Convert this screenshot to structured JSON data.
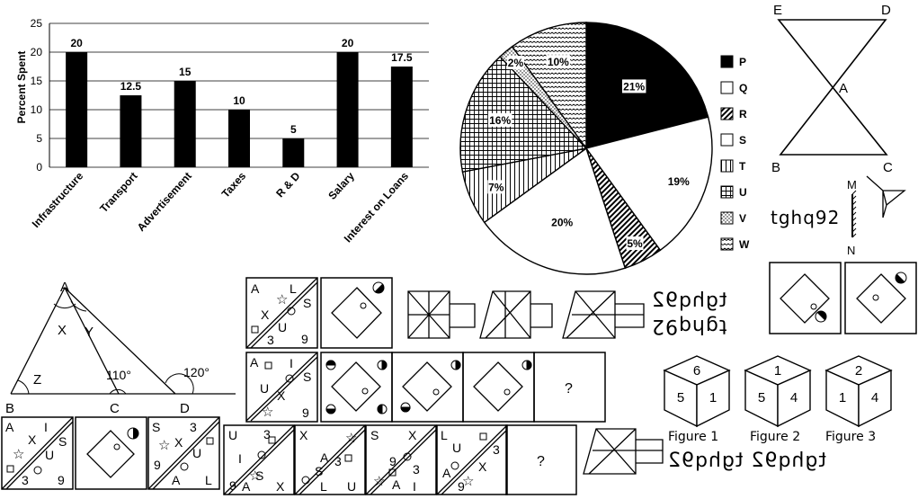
{
  "bar_chart": {
    "ylabel": "Percent Spent",
    "yticks": [
      "0",
      "5",
      "10",
      "15",
      "20",
      "25"
    ]
  },
  "pie_chart": {
    "legend_items": [
      "P",
      "Q",
      "R",
      "S",
      "T",
      "U",
      "V",
      "W"
    ],
    "slice_labels": [
      "21%",
      "19%",
      "5%",
      "20%",
      "7%",
      "16%",
      "2%",
      "10%"
    ]
  },
  "chart_data": [
    {
      "type": "bar",
      "categories": [
        "Infrastructure",
        "Transport",
        "Advertisement",
        "Taxes",
        "R & D",
        "Salary",
        "Interest on Loans"
      ],
      "values": [
        20,
        12.5,
        15,
        10,
        5,
        20,
        17.5
      ],
      "value_labels": [
        "20",
        "12.5",
        "15",
        "10",
        "5",
        "20",
        "17.5"
      ],
      "xlabel": "",
      "ylabel": "Percent Spent",
      "ylim": [
        0,
        25
      ],
      "grid": "horizontal"
    },
    {
      "type": "pie",
      "categories": [
        "P",
        "Q",
        "R",
        "S",
        "T",
        "U",
        "V",
        "W"
      ],
      "values": [
        21,
        19,
        5,
        20,
        7,
        16,
        2,
        10
      ],
      "legend": "right"
    }
  ],
  "hourglass": {
    "labels": [
      "E",
      "D",
      "A",
      "B",
      "C"
    ]
  },
  "mirror_q": {
    "text": "tghq92",
    "mirror_labels": [
      "M",
      "N"
    ]
  },
  "triangle": {
    "labels": [
      "A",
      "X",
      "Y",
      "Z",
      "B",
      "C",
      "D"
    ],
    "angle1": "110°",
    "angle2": "120°"
  },
  "series_row1": {
    "cells": [
      [
        "A",
        "L",
        "S",
        "X",
        "U",
        "3",
        "9"
      ],
      [],
      []
    ]
  },
  "series_row2": {
    "cell1": [
      "A",
      "I",
      "S",
      "U",
      "X",
      "9"
    ],
    "question": "?"
  },
  "series_row3": {
    "cell1": [
      "A",
      "I",
      "X",
      "S",
      "U",
      "3",
      "9"
    ],
    "cell3": [
      "S",
      "X",
      "3",
      "9",
      "U",
      "A",
      "L"
    ]
  },
  "series_row4": {
    "cells": [
      [
        "U",
        "3",
        "I",
        "9",
        "S",
        "A",
        "X"
      ],
      [
        "X",
        "A",
        "3",
        "S",
        "L",
        "U"
      ],
      [
        "S",
        "X",
        "9",
        "3",
        "A",
        "I"
      ],
      [
        "L",
        "U",
        "3",
        "A",
        "9",
        "X"
      ]
    ],
    "question": "?"
  },
  "mirror_texts": [
    "tghq92",
    "tghq92",
    "tghq92 tghq92"
  ],
  "cubes": {
    "faces": [
      [
        "6",
        "5",
        "1"
      ],
      [
        "1",
        "5",
        "4"
      ],
      [
        "2",
        "1",
        "4"
      ]
    ],
    "labels": [
      "Figure 1",
      "Figure 2",
      "Figure 3"
    ]
  }
}
